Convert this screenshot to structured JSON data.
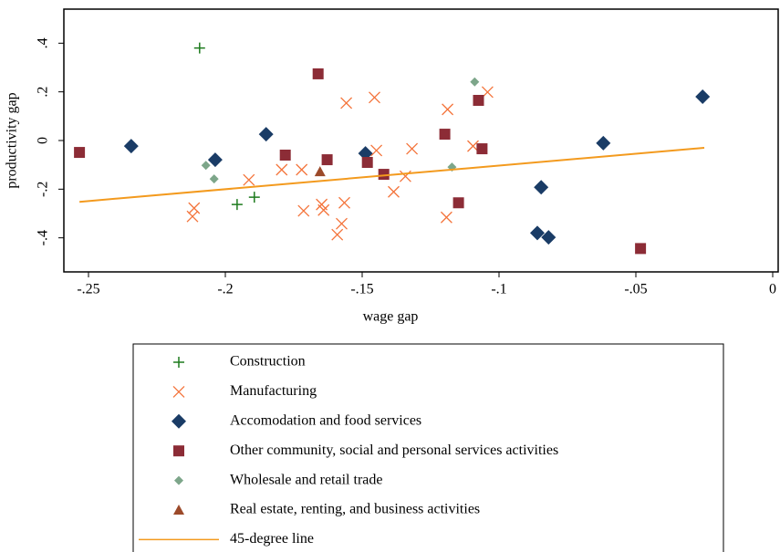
{
  "chart_data": {
    "type": "scatter",
    "x_label": "wage gap",
    "y_label": "productivity gap",
    "xlim": [
      -0.259,
      0.002
    ],
    "ylim": [
      -0.54,
      0.54
    ],
    "xticks": [
      {
        "value": -0.25,
        "label": "-.25"
      },
      {
        "value": -0.2,
        "label": "-.2"
      },
      {
        "value": -0.15,
        "label": "-.15"
      },
      {
        "value": -0.1,
        "label": "-.1"
      },
      {
        "value": -0.05,
        "label": "-.05"
      },
      0
    ],
    "yticks": [
      {
        "value": -0.4,
        "label": "-.4"
      },
      {
        "value": -0.2,
        "label": "-.2"
      },
      0,
      {
        "value": 0.2,
        "label": ".2"
      },
      {
        "value": 0.4,
        "label": ".4"
      }
    ],
    "series": [
      {
        "name": "Construction",
        "color": "#1e7b1e",
        "marker": "plus",
        "x": [
          -0.2094,
          -0.1957,
          -0.1894
        ],
        "values": [
          0.38,
          -0.263,
          -0.233
        ]
      },
      {
        "name": "Manufacturing",
        "color": "#f4743b",
        "marker": "cross",
        "x": [
          -0.2114,
          -0.212,
          -0.1914,
          -0.1794,
          -0.1721,
          -0.1714,
          -0.1648,
          -0.1641,
          -0.1558,
          -0.1455,
          -0.1448,
          -0.1575,
          -0.1591,
          -0.1565,
          -0.1385,
          -0.1342,
          -0.1318,
          -0.1192,
          -0.1188,
          -0.1095,
          -0.1042
        ],
        "values": [
          -0.278,
          -0.312,
          -0.162,
          -0.12,
          -0.12,
          -0.289,
          -0.263,
          -0.286,
          0.154,
          0.177,
          -0.041,
          -0.342,
          -0.387,
          -0.256,
          -0.211,
          -0.147,
          -0.034,
          -0.316,
          0.128,
          -0.023,
          0.199
        ]
      },
      {
        "name": "Accomodation and food services",
        "color": "#1a3c66",
        "marker": "diamond",
        "x": [
          -0.2344,
          -0.2037,
          -0.1851,
          -0.1488,
          -0.086,
          -0.0819,
          -0.0846,
          -0.0619,
          -0.0256
        ],
        "values": [
          -0.023,
          -0.079,
          0.026,
          -0.053,
          -0.38,
          -0.398,
          -0.192,
          -0.011,
          0.18
        ]
      },
      {
        "name": "Other community, social and personal services activities",
        "color": "#8c2c36",
        "marker": "square",
        "x": [
          -0.2533,
          -0.1661,
          -0.1781,
          -0.1628,
          -0.1481,
          -0.1421,
          -0.1198,
          -0.1148,
          -0.1075,
          -0.1062,
          -0.0483
        ],
        "values": [
          -0.049,
          0.274,
          -0.06,
          -0.079,
          -0.09,
          -0.139,
          0.026,
          -0.256,
          0.165,
          -0.034,
          -0.444
        ]
      },
      {
        "name": "Wholesale and retail trade",
        "color": "#7da68a",
        "marker": "small-diamond",
        "x": [
          -0.2071,
          -0.2041,
          -0.1172,
          -0.1089
        ],
        "values": [
          -0.102,
          -0.158,
          -0.109,
          0.241
        ]
      },
      {
        "name": "Real estate, renting, and business activities",
        "color": "#9c4a2a",
        "marker": "triangle",
        "x": [
          -0.1654
        ],
        "values": [
          -0.128
        ]
      },
      {
        "name": "45-degree line",
        "color": "#f39a1e",
        "marker": "line",
        "x": [
          -0.2533,
          -0.025
        ],
        "values": [
          -0.252,
          -0.03
        ]
      }
    ]
  }
}
